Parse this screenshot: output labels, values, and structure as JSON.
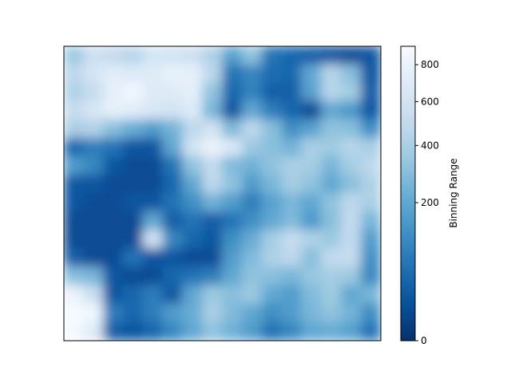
{
  "chart_data": {
    "type": "heatmap",
    "title": "",
    "xlabel": "",
    "ylabel": "",
    "show_axes_ticks": false,
    "grid": false,
    "colormap": {
      "name": "Blues_r",
      "stops": [
        "#08306b",
        "#08519c",
        "#2171b5",
        "#4292c6",
        "#6baed6",
        "#9ecae1",
        "#c6dbef",
        "#deebf7",
        "#f7fbff"
      ]
    },
    "colorbar": {
      "label": "Binning Range",
      "location": "right",
      "scale": "sqrt",
      "range": [
        0,
        910
      ],
      "ticks": [
        0,
        200,
        400,
        600,
        800
      ],
      "tick_labels": [
        "0",
        "200",
        "400",
        "600",
        "800"
      ]
    },
    "values_grid": [
      [
        350,
        560,
        500,
        450,
        620,
        600,
        560,
        420,
        180,
        320,
        60,
        40,
        30,
        20,
        10,
        20
      ],
      [
        480,
        620,
        720,
        680,
        700,
        780,
        760,
        480,
        60,
        100,
        50,
        40,
        200,
        450,
        300,
        20
      ],
      [
        420,
        520,
        760,
        850,
        700,
        700,
        750,
        320,
        40,
        90,
        30,
        30,
        180,
        450,
        380,
        30
      ],
      [
        520,
        640,
        760,
        720,
        640,
        600,
        700,
        260,
        20,
        200,
        80,
        40,
        10,
        200,
        150,
        20
      ],
      [
        400,
        430,
        300,
        220,
        160,
        250,
        480,
        600,
        280,
        480,
        300,
        120,
        180,
        320,
        300,
        120
      ],
      [
        40,
        80,
        60,
        20,
        20,
        200,
        600,
        800,
        660,
        350,
        300,
        250,
        400,
        360,
        450,
        400
      ],
      [
        160,
        100,
        20,
        10,
        10,
        60,
        320,
        500,
        280,
        240,
        320,
        400,
        380,
        260,
        380,
        480
      ],
      [
        20,
        20,
        10,
        10,
        10,
        40,
        200,
        480,
        320,
        160,
        260,
        380,
        320,
        200,
        300,
        420
      ],
      [
        20,
        10,
        10,
        20,
        20,
        60,
        120,
        240,
        160,
        80,
        180,
        260,
        200,
        320,
        480,
        400
      ],
      [
        10,
        10,
        10,
        10,
        200,
        30,
        60,
        30,
        60,
        120,
        200,
        280,
        150,
        300,
        500,
        260
      ],
      [
        10,
        10,
        10,
        10,
        600,
        100,
        40,
        20,
        120,
        220,
        380,
        520,
        420,
        350,
        500,
        160
      ],
      [
        30,
        10,
        10,
        60,
        20,
        20,
        10,
        10,
        160,
        280,
        420,
        480,
        300,
        500,
        520,
        120
      ],
      [
        300,
        260,
        20,
        10,
        10,
        40,
        60,
        80,
        200,
        320,
        300,
        260,
        340,
        380,
        350,
        100
      ],
      [
        800,
        550,
        20,
        40,
        80,
        20,
        200,
        350,
        300,
        350,
        200,
        160,
        280,
        360,
        200,
        260
      ],
      [
        900,
        850,
        80,
        40,
        80,
        160,
        220,
        400,
        280,
        200,
        120,
        160,
        260,
        320,
        250,
        120
      ],
      [
        880,
        700,
        30,
        20,
        40,
        100,
        200,
        320,
        240,
        160,
        60,
        100,
        200,
        220,
        180,
        60
      ]
    ]
  }
}
